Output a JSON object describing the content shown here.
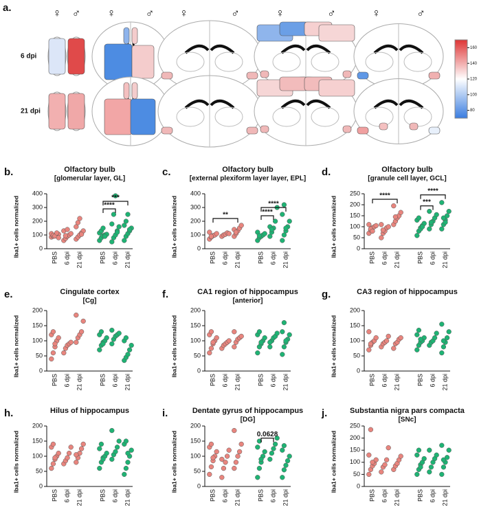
{
  "heatmap": {
    "label": "a.",
    "sexes": [
      "♀",
      "♂"
    ],
    "rows": [
      "6 dpi",
      "21 dpi"
    ],
    "colorbar": {
      "lim": [
        70,
        170
      ],
      "ticks": [
        80,
        100,
        120,
        140,
        160
      ]
    }
  },
  "chart_data": [
    {
      "type": "dot",
      "label": "b.",
      "title": [
        "Olfactory bulb",
        "[glomerular layer, GL]"
      ],
      "ylabel": "Iba1+ cells normalized",
      "categories": [
        "PBS",
        "6 dpi",
        "21 dpi",
        "PBS",
        "6 dpi",
        "21 dpi"
      ],
      "ylim": [
        0,
        400
      ],
      "yticks": [
        0,
        100,
        200,
        300,
        400
      ],
      "series": [
        {
          "color": "#e8857e",
          "values": [
            [
              85,
              90,
              95,
              100,
              105,
              110,
              98,
              92,
              115,
              80
            ],
            [
              60,
              75,
              90,
              100,
              110,
              130,
              95,
              140
            ],
            [
              70,
              85,
              100,
              115,
              130,
              160,
              190,
              220,
              105
            ]
          ]
        },
        {
          "color": "#1fb374",
          "values": [
            [
              60,
              80,
              95,
              100,
              105,
              115,
              130,
              150,
              90
            ],
            [
              50,
              80,
              100,
              130,
              160,
              180,
              250,
              385,
              120
            ],
            [
              60,
              90,
              110,
              130,
              150,
              170,
              200,
              250,
              140
            ]
          ]
        }
      ],
      "annotations": [
        {
          "label": "****",
          "between": [
            3,
            4
          ],
          "y": 290
        },
        {
          "label": "***",
          "between": [
            3,
            5
          ],
          "y": 345
        }
      ]
    },
    {
      "type": "dot",
      "label": "c.",
      "title": [
        "Olfactory bulb",
        "[external plexiform layer layer, EPL]"
      ],
      "ylabel": "Iba1+ cells normalized",
      "categories": [
        "PBS",
        "6 dpi",
        "21 dpi",
        "PBS",
        "6 dpi",
        "21 dpi"
      ],
      "ylim": [
        0,
        400
      ],
      "yticks": [
        0,
        100,
        200,
        300,
        400
      ],
      "series": [
        {
          "color": "#e8857e",
          "values": [
            [
              70,
              85,
              95,
              100,
              110,
              120,
              90
            ],
            [
              90,
              100,
              105,
              115,
              110
            ],
            [
              90,
              110,
              130,
              150,
              170,
              140,
              120
            ]
          ]
        },
        {
          "color": "#1fb374",
          "values": [
            [
              60,
              80,
              90,
              100,
              110,
              120,
              95
            ],
            [
              90,
              120,
              150,
              200,
              300,
              160,
              140
            ],
            [
              60,
              100,
              130,
              160,
              200,
              250,
              320,
              150
            ]
          ]
        }
      ],
      "annotations": [
        {
          "label": "**",
          "between": [
            0,
            2
          ],
          "y": 220
        },
        {
          "label": "****",
          "between": [
            3,
            4
          ],
          "y": 240
        },
        {
          "label": "****",
          "between": [
            3,
            5
          ],
          "y": 300
        }
      ]
    },
    {
      "type": "dot",
      "label": "d.",
      "title": [
        "Olfactory bulb",
        "[granule cell layer, GCL]"
      ],
      "ylabel": "Iba1+ cells normalized",
      "categories": [
        "PBS",
        "6 dpi",
        "21 dpi",
        "PBS",
        "6 dpi",
        "21 dpi"
      ],
      "ylim": [
        0,
        250
      ],
      "yticks": [
        0,
        50,
        100,
        150,
        200,
        250
      ],
      "series": [
        {
          "color": "#e8857e",
          "values": [
            [
              70,
              85,
              95,
              100,
              105,
              110,
              90,
              80
            ],
            [
              50,
              70,
              80,
              95,
              100,
              110,
              85
            ],
            [
              110,
              125,
              140,
              150,
              165,
              195,
              145
            ]
          ]
        },
        {
          "color": "#1fb374",
          "values": [
            [
              60,
              80,
              95,
              105,
              115,
              130,
              140,
              90,
              100
            ],
            [
              90,
              110,
              125,
              140,
              155,
              170,
              120
            ],
            [
              90,
              110,
              130,
              150,
              170,
              210,
              140,
              120
            ]
          ]
        }
      ],
      "annotations": [
        {
          "label": "****",
          "between": [
            0,
            2
          ],
          "y": 225
        },
        {
          "label": "***",
          "between": [
            3,
            4
          ],
          "y": 195
        },
        {
          "label": "****",
          "between": [
            3,
            5
          ],
          "y": 245
        }
      ]
    },
    {
      "type": "dot",
      "label": "e.",
      "title": [
        "Cingulate cortex",
        "[Cg]"
      ],
      "ylabel": "Iba1+ cells normalized",
      "categories": [
        "PBS",
        "6 dpi",
        "21 dpi",
        "PBS",
        "6 dpi",
        "21 dpi"
      ],
      "ylim": [
        0,
        200
      ],
      "yticks": [
        0,
        50,
        100,
        150,
        200
      ],
      "series": [
        {
          "color": "#e8857e",
          "values": [
            [
              40,
              60,
              80,
              100,
              110,
              120,
              130,
              90
            ],
            [
              60,
              75,
              85,
              90,
              95
            ],
            [
              95,
              110,
              120,
              130,
              165,
              185
            ]
          ]
        },
        {
          "color": "#1fb374",
          "values": [
            [
              70,
              85,
              95,
              100,
              110,
              120,
              130,
              90
            ],
            [
              90,
              105,
              115,
              120,
              125,
              135
            ],
            [
              35,
              45,
              55,
              70,
              85,
              100,
              110
            ]
          ]
        }
      ]
    },
    {
      "type": "dot",
      "label": "f.",
      "title": [
        "CA1 region of hippocampus",
        "[anterior]"
      ],
      "ylabel": "Iba1+ cells normalized",
      "categories": [
        "PBS",
        "6 dpi",
        "21 dpi",
        "PBS",
        "6 dpi",
        "21 dpi"
      ],
      "ylim": [
        0,
        200
      ],
      "yticks": [
        0,
        50,
        100,
        150,
        200
      ],
      "series": [
        {
          "color": "#e8857e",
          "values": [
            [
              60,
              75,
              90,
              100,
              110,
              120,
              130,
              95
            ],
            [
              75,
              85,
              90,
              95,
              100
            ],
            [
              80,
              95,
              105,
              110,
              115,
              130
            ]
          ]
        },
        {
          "color": "#1fb374",
          "values": [
            [
              60,
              80,
              90,
              100,
              110,
              120,
              130,
              95
            ],
            [
              80,
              100,
              110,
              115,
              125,
              95
            ],
            [
              55,
              80,
              95,
              105,
              120,
              130,
              160,
              100
            ]
          ]
        }
      ]
    },
    {
      "type": "dot",
      "label": "g.",
      "title": [
        "CA3 region of  hippocampus"
      ],
      "ylabel": "Iba1+ cells normalized",
      "categories": [
        "PBS",
        "6 dpi",
        "21 dpi",
        "PBS",
        "6 dpi",
        "21 dpi"
      ],
      "ylim": [
        0,
        200
      ],
      "yticks": [
        0,
        50,
        100,
        150,
        200
      ],
      "series": [
        {
          "color": "#e8857e",
          "values": [
            [
              70,
              85,
              95,
              100,
              110,
              130,
              90
            ],
            [
              80,
              90,
              95,
              100,
              115
            ],
            [
              75,
              90,
              95,
              105,
              110
            ]
          ]
        },
        {
          "color": "#1fb374",
          "values": [
            [
              70,
              85,
              95,
              100,
              110,
              120,
              135,
              105
            ],
            [
              85,
              95,
              100,
              110,
              125
            ],
            [
              60,
              80,
              95,
              110,
              130,
              155,
              100
            ]
          ]
        }
      ]
    },
    {
      "type": "dot",
      "label": "h.",
      "title": [
        "Hilus of hippocampus"
      ],
      "ylabel": "Iba1+ cells normalized",
      "categories": [
        "PBS",
        "6 dpi",
        "21 dpi",
        "PBS",
        "6 dpi",
        "21 dpi"
      ],
      "ylim": [
        0,
        200
      ],
      "yticks": [
        0,
        50,
        100,
        150,
        200
      ],
      "series": [
        {
          "color": "#e8857e",
          "values": [
            [
              60,
              75,
              90,
              100,
              110,
              130,
              140,
              95
            ],
            [
              75,
              85,
              95,
              110,
              130
            ],
            [
              80,
              95,
              110,
              125,
              140,
              105
            ]
          ]
        },
        {
          "color": "#1fb374",
          "values": [
            [
              60,
              80,
              95,
              100,
              110,
              125,
              140,
              90
            ],
            [
              90,
              105,
              115,
              130,
              150,
              185
            ],
            [
              40,
              60,
              80,
              100,
              120,
              140,
              150,
              110
            ]
          ]
        }
      ]
    },
    {
      "type": "dot",
      "label": "i.",
      "title": [
        "Dentate gyrus of hippocampus",
        "[DG]"
      ],
      "ylabel": "Iba1+ cells normalized",
      "categories": [
        "PBS",
        "6 dpi",
        "21 dpi",
        "PBS",
        "6 dpi",
        "21 dpi"
      ],
      "ylim": [
        0,
        200
      ],
      "yticks": [
        0,
        50,
        100,
        150,
        200
      ],
      "series": [
        {
          "color": "#e8857e",
          "values": [
            [
              40,
              65,
              85,
              100,
              115,
              130,
              140,
              95
            ],
            [
              30,
              60,
              80,
              100,
              120,
              90
            ],
            [
              60,
              80,
              100,
              115,
              140,
              185
            ]
          ]
        },
        {
          "color": "#1fb374",
          "values": [
            [
              30,
              60,
              80,
              100,
              115,
              130,
              150,
              90
            ],
            [
              90,
              110,
              125,
              140,
              160
            ],
            [
              30,
              55,
              70,
              85,
              100,
              120,
              135
            ]
          ]
        }
      ],
      "annotations": [
        {
          "label": "0.0628",
          "between": [
            3,
            4
          ],
          "y": 160
        }
      ]
    },
    {
      "type": "dot",
      "label": "j.",
      "title": [
        "Substantia nigra pars compacta",
        "[SNc]"
      ],
      "ylabel": "Iba1+ cells normalized",
      "categories": [
        "PBS",
        "6 dpi",
        "21 dpi",
        "PBS",
        "6 dpi",
        "21 dpi"
      ],
      "ylim": [
        0,
        250
      ],
      "yticks": [
        0,
        50,
        100,
        150,
        200,
        250
      ],
      "series": [
        {
          "color": "#e8857e",
          "values": [
            [
              50,
              70,
              85,
              95,
              110,
              130,
              235,
              100
            ],
            [
              60,
              80,
              90,
              110,
              160
            ],
            [
              70,
              85,
              95,
              110,
              125
            ]
          ]
        },
        {
          "color": "#1fb374",
          "values": [
            [
              50,
              70,
              90,
              100,
              115,
              130,
              150,
              80
            ],
            [
              60,
              80,
              100,
              115,
              130,
              150
            ],
            [
              50,
              80,
              100,
              120,
              150,
              170,
              110
            ]
          ]
        }
      ]
    }
  ]
}
